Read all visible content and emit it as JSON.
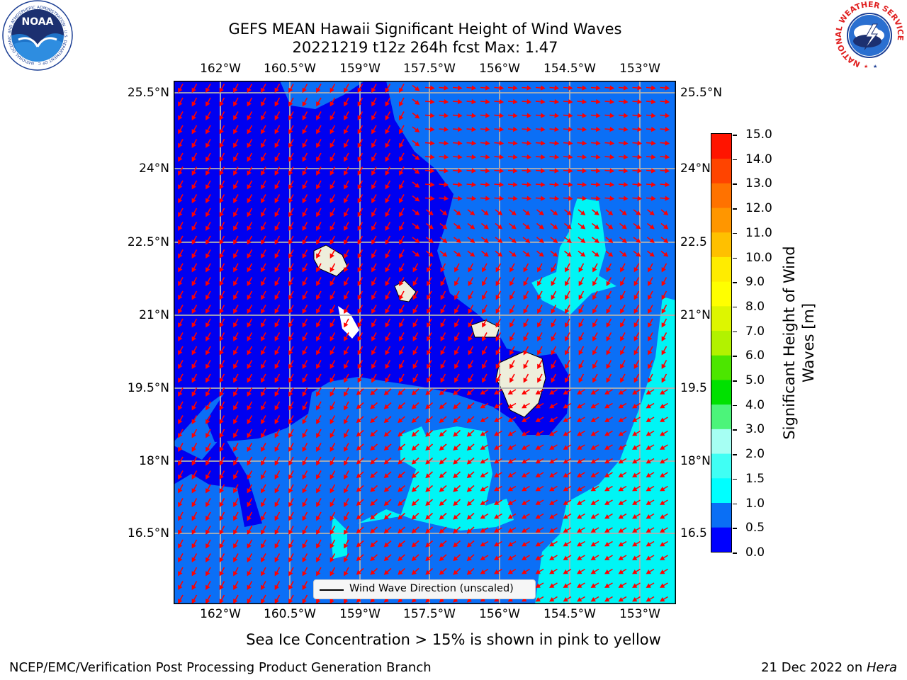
{
  "header": {
    "title_line1": "GEFS MEAN Hawaii Significant Height of Wind Waves",
    "title_line2": "20221219 t12z 264h fcst   Max: 1.47"
  },
  "logos": {
    "left": {
      "name": "noaa-logo",
      "text": "NOAA",
      "ring_text": "NATIONAL OCEANIC AND ATMOSPHERIC ADMINISTRATION · U.S. DEPARTMENT OF COMMERCE"
    },
    "right": {
      "name": "national-weather-service-logo",
      "ring_text": "NATIONAL WEATHER SERVICE"
    }
  },
  "map": {
    "lon_ticks": [
      "162°W",
      "160.5°W",
      "159°W",
      "157.5°W",
      "156°W",
      "154.5°W",
      "153°W"
    ],
    "lat_ticks": [
      "25.5°N",
      "24°N",
      "22.5°N",
      "21°N",
      "19.5°N",
      "18°N",
      "16.5°N"
    ],
    "lat_ticks_right": [
      "25.5°N",
      "24°N",
      "22.5",
      "21°N",
      "19.5",
      "18°N",
      "16.5"
    ],
    "lon_range": [
      -163,
      -152.6
    ],
    "lat_range": [
      15.4,
      26.2
    ],
    "colors": {
      "band_0_0_5": "#0000f0",
      "band_0_5_1_0": "#0b6ff6",
      "band_1_0_1_5": "#00f5f5",
      "land": "#eeeedb",
      "arrow": "#ff0000",
      "grid": "#b0b0b0"
    },
    "wind_wave_direction": "southwest"
  },
  "legend": {
    "label": "Wind Wave Direction (unscaled)"
  },
  "colorbar": {
    "label_line1": "Significant Height of Wind",
    "label_line2": "Waves [m]",
    "tick_labels": [
      "15.0",
      "14.0",
      "13.0",
      "12.0",
      "11.0",
      "10.0",
      "9.0",
      "8.0",
      "7.0",
      "6.0",
      "5.0",
      "4.0",
      "3.0",
      "2.0",
      "1.5",
      "1.0",
      "0.5",
      "0.0"
    ],
    "bands": [
      {
        "range": "0.0-0.5",
        "color": "#0000ff"
      },
      {
        "range": "0.5-1.0",
        "color": "#0a6ff5"
      },
      {
        "range": "1.0-1.5",
        "color": "#00ffff"
      },
      {
        "range": "1.5-2.0",
        "color": "#40fff4"
      },
      {
        "range": "2.0-3.0",
        "color": "#a6fff3"
      },
      {
        "range": "3.0-4.0",
        "color": "#4cf47a"
      },
      {
        "range": "4.0-5.0",
        "color": "#00e100"
      },
      {
        "range": "5.0-6.0",
        "color": "#4ce600"
      },
      {
        "range": "6.0-7.0",
        "color": "#b2f200"
      },
      {
        "range": "7.0-8.0",
        "color": "#ddf600"
      },
      {
        "range": "8.0-9.0",
        "color": "#ffff00"
      },
      {
        "range": "9.0-10.0",
        "color": "#ffec00"
      },
      {
        "range": "10.0-11.0",
        "color": "#ffc000"
      },
      {
        "range": "11.0-12.0",
        "color": "#ff9600"
      },
      {
        "range": "12.0-13.0",
        "color": "#ff7200"
      },
      {
        "range": "13.0-14.0",
        "color": "#ff4400"
      },
      {
        "range": "14.0-15.0",
        "color": "#ff1400"
      }
    ]
  },
  "subtitle": "Sea Ice Concentration > 15% is shown in pink to yellow",
  "footer": {
    "left": "NCEP/EMC/Verification Post Processing Product Generation Branch",
    "right_date": "21 Dec 2022 on ",
    "right_machine": "Hera"
  }
}
